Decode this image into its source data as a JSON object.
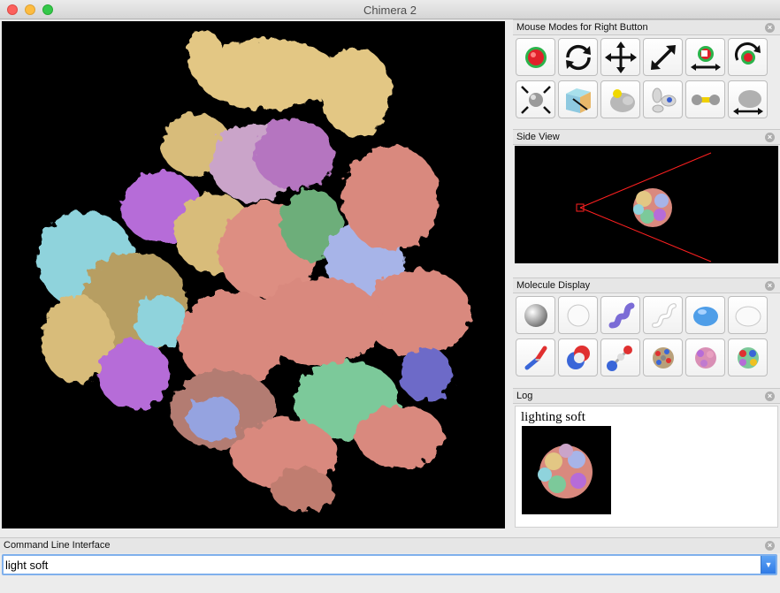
{
  "window": {
    "title": "Chimera 2"
  },
  "panels": {
    "mouse_modes": {
      "title": "Mouse Modes for Right Button"
    },
    "side_view": {
      "title": "Side View"
    },
    "molecule_display": {
      "title": "Molecule Display"
    },
    "log": {
      "title": "Log",
      "entries": [
        "lighting soft"
      ]
    }
  },
  "mouse_mode_icons": [
    "select-icon",
    "rotate-icon",
    "translate-icon",
    "zoom-icon",
    "translate-atoms-icon",
    "rotate-atoms-icon",
    "pivot-icon",
    "clip-icon",
    "contour-level-icon",
    "move-planes-icon",
    "bond-rotation-icon",
    "move-picked-models-icon"
  ],
  "molecule_display_icons": [
    "show-atoms-icon",
    "hide-atoms-icon",
    "show-cartoon-icon",
    "hide-cartoon-icon",
    "show-surface-icon",
    "hide-surface-icon",
    "stick-style-icon",
    "sphere-style-icon",
    "ball-stick-style-icon",
    "color-by-element-icon",
    "color-by-chain-icon",
    "color-by-polymer-icon"
  ],
  "command_line": {
    "title": "Command Line Interface",
    "value": "light soft"
  },
  "colors": {
    "viewport_bg": "#000000",
    "accent": "#2f7ae6",
    "sideview_frustum": "#ff0000"
  }
}
